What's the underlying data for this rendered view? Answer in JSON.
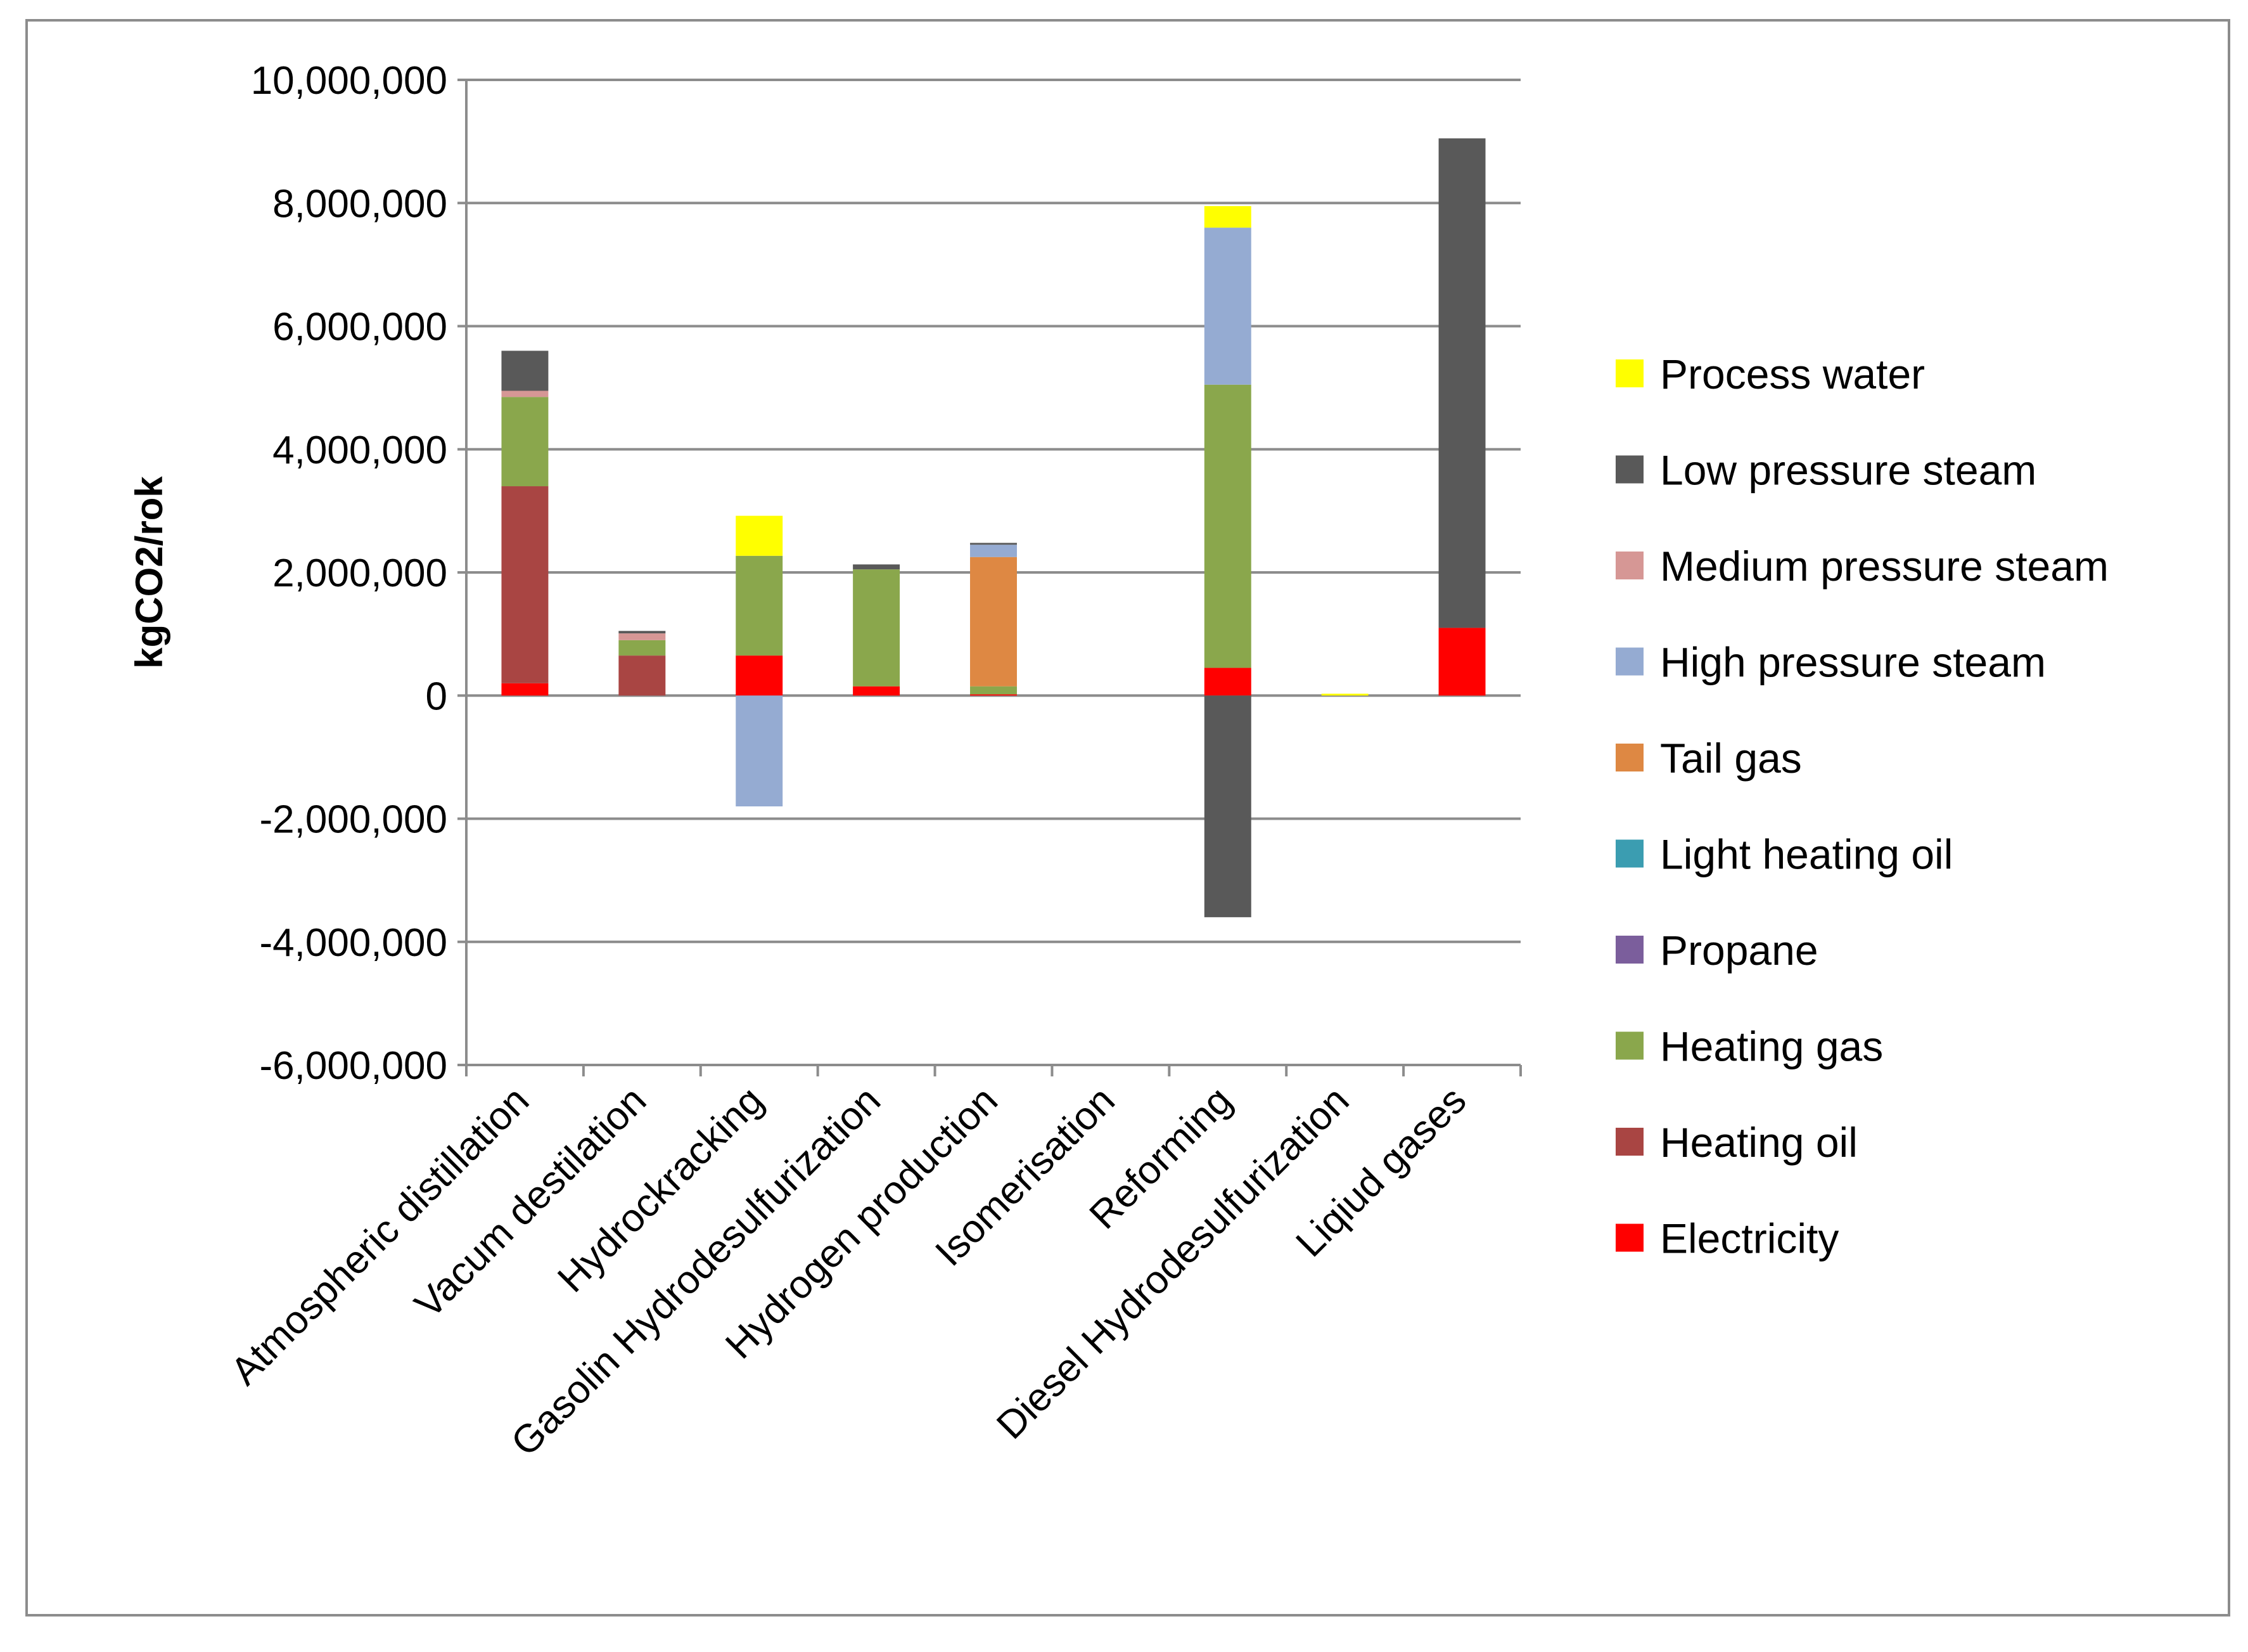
{
  "chart_data": {
    "type": "bar",
    "stacked": true,
    "ylabel": "kgCO2/rok",
    "xlabel": "",
    "ylim": [
      -6000000,
      10000000
    ],
    "yticks": [
      10000000,
      8000000,
      6000000,
      4000000,
      2000000,
      0,
      -2000000,
      -4000000,
      -6000000
    ],
    "ytick_labels": [
      "10,000,000",
      "8,000,000",
      "6,000,000",
      "4,000,000",
      "2,000,000",
      "0",
      "-2,000,000",
      "-4,000,000",
      "-6,000,000"
    ],
    "grid": true,
    "legend_position": "right",
    "categories": [
      "Atmospheric distillation",
      "Vacum destilation",
      "Hydrockracking",
      "Gasolin Hydrodesulfurization",
      "Hydrogen production",
      "Isomerisation",
      "Reforming",
      "Diesel Hydrodesulfurization",
      "Liqiud gases"
    ],
    "series": [
      {
        "name": "Electricity",
        "color": "#ff0000",
        "values": [
          200000,
          0,
          650000,
          150000,
          20000,
          0,
          450000,
          0,
          1100000
        ]
      },
      {
        "name": "Heating oil",
        "color": "#a94543",
        "values": [
          3200000,
          650000,
          0,
          0,
          0,
          0,
          0,
          0,
          0
        ]
      },
      {
        "name": "Heating gas",
        "color": "#8aa74c",
        "values": [
          1450000,
          250000,
          1620000,
          1900000,
          130000,
          0,
          4600000,
          0,
          0
        ]
      },
      {
        "name": "Propane",
        "color": "#7b5e9c",
        "values": [
          0,
          0,
          0,
          0,
          0,
          0,
          0,
          0,
          0
        ]
      },
      {
        "name": "Light heating oil",
        "color": "#3b9db1",
        "values": [
          0,
          0,
          0,
          0,
          0,
          0,
          0,
          0,
          0
        ]
      },
      {
        "name": "Tail gas",
        "color": "#de8843",
        "values": [
          0,
          0,
          0,
          0,
          2100000,
          0,
          0,
          0,
          0
        ]
      },
      {
        "name": "High pressure steam",
        "color": "#95abd2",
        "values": [
          0,
          0,
          -1800000,
          0,
          200000,
          0,
          2550000,
          0,
          0
        ]
      },
      {
        "name": "Medium pressure steam",
        "color": "#d69795",
        "values": [
          100000,
          110000,
          0,
          0,
          0,
          0,
          0,
          0,
          0
        ]
      },
      {
        "name": "Low pressure steam",
        "color": "#595959",
        "values": [
          650000,
          40000,
          0,
          80000,
          30000,
          0,
          -3600000,
          0,
          7950000
        ]
      },
      {
        "name": "Process water",
        "color": "#ffff00",
        "values": [
          0,
          0,
          650000,
          0,
          0,
          0,
          350000,
          30000,
          0
        ]
      }
    ]
  }
}
